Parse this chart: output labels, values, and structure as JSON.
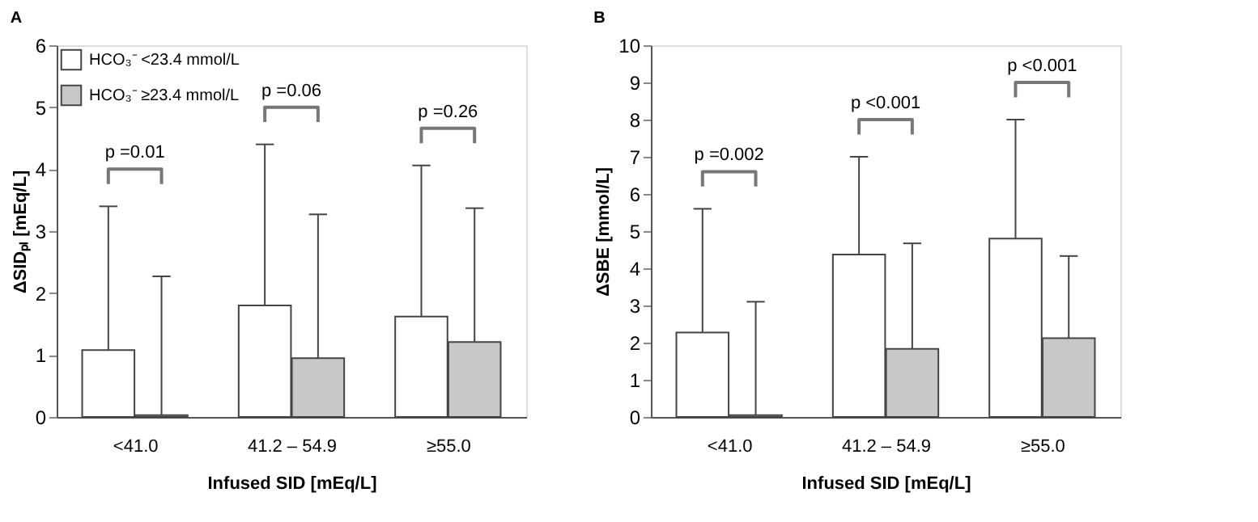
{
  "chart_data": [
    {
      "type": "bar",
      "title": "A",
      "xlabel": "Infused SID [mEq/L]",
      "ylabel": "ΔSIDₚₗ [mEq/L]",
      "categories": [
        "<41.0",
        "41.2 – 54.9",
        "≥55.0"
      ],
      "series": [
        {
          "name": "HCO₃⁻ <23.4 mmol/L",
          "color": "#ffffff",
          "values": [
            1.08,
            1.8,
            1.62
          ],
          "errors": [
            [
              1.08,
              3.4
            ],
            [
              1.8,
              4.4
            ],
            [
              1.62,
              4.06
            ]
          ]
        },
        {
          "name": "HCO₃⁻ ≥23.4 mmol/L",
          "color": "#c8c8c8",
          "values": [
            0.03,
            0.95,
            1.21
          ],
          "errors": [
            [
              0.03,
              2.27
            ],
            [
              0.95,
              3.27
            ],
            [
              1.21,
              3.37
            ]
          ]
        }
      ],
      "annotations": [
        "p =0.01",
        "p =0.06",
        "p =0.26"
      ],
      "ylim": [
        0,
        6
      ],
      "yticks": [
        0,
        1,
        2,
        3,
        4,
        5,
        6
      ],
      "grid": false,
      "legend": "top left"
    },
    {
      "type": "bar",
      "title": "B",
      "xlabel": "Infused SID [mEq/L]",
      "ylabel": "ΔSBE [mmol/L]",
      "categories": [
        "<41.0",
        "41.2 – 54.9",
        "≥55.0"
      ],
      "series": [
        {
          "name": "HCO₃⁻ <23.4 mmol/L",
          "color": "#ffffff",
          "values": [
            2.27,
            4.37,
            4.8
          ],
          "errors": [
            [
              2.27,
              5.6
            ],
            [
              4.37,
              7.0
            ],
            [
              4.8,
              8.0
            ]
          ]
        },
        {
          "name": "HCO₃⁻ ≥23.4 mmol/L",
          "color": "#c8c8c8",
          "values": [
            0.05,
            1.83,
            2.12
          ],
          "errors": [
            [
              0.05,
              3.1
            ],
            [
              1.83,
              4.67
            ],
            [
              2.12,
              4.33
            ]
          ]
        }
      ],
      "annotations": [
        "p =0.002",
        "p <0.001",
        "p <0.001"
      ],
      "ylim": [
        0,
        10
      ],
      "yticks": [
        0,
        1,
        2,
        3,
        4,
        5,
        6,
        7,
        8,
        9,
        10
      ],
      "grid": false,
      "legend": "top left"
    }
  ]
}
